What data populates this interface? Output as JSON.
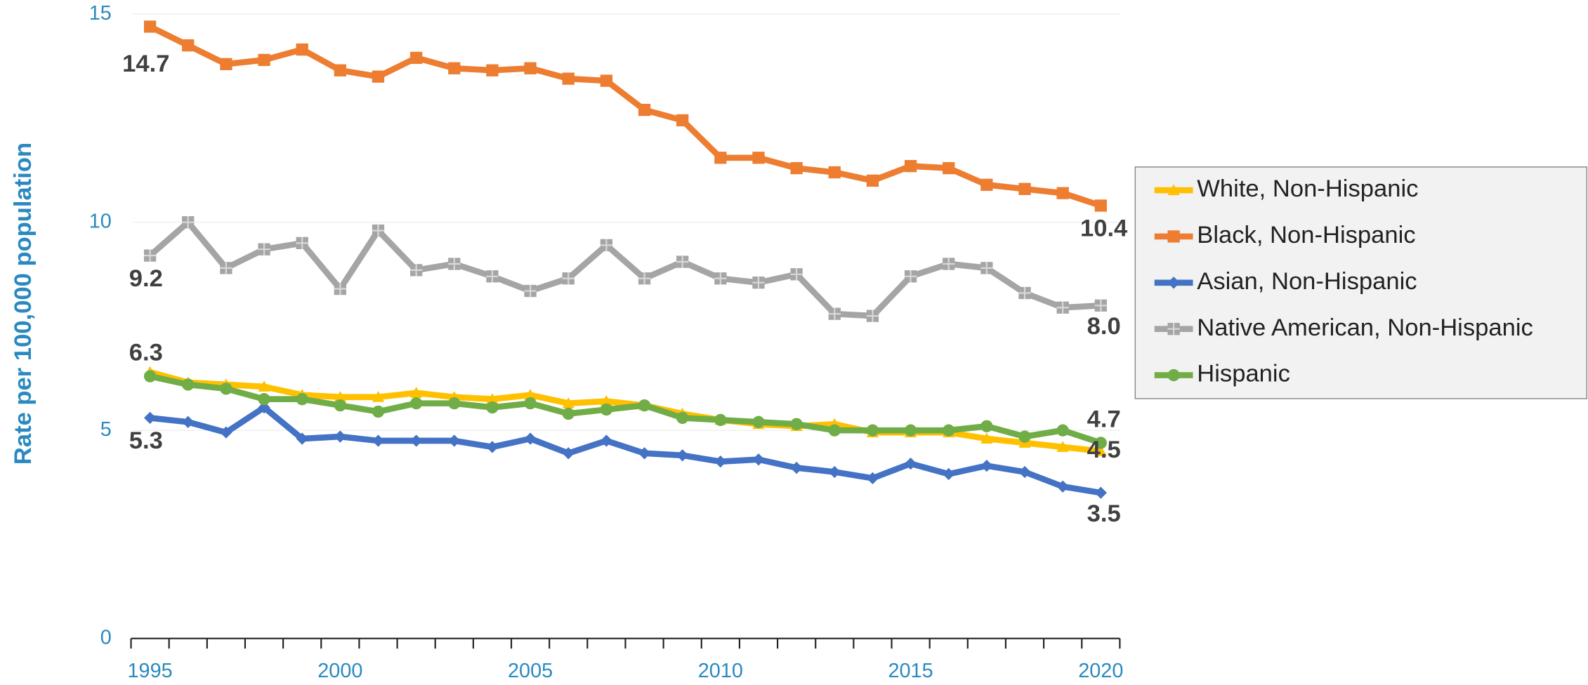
{
  "chart_data": {
    "type": "line",
    "y_label": "Rate per 100,000 population",
    "categories": [
      "1995",
      null,
      null,
      null,
      null,
      "2000",
      null,
      null,
      null,
      null,
      "2005",
      null,
      null,
      null,
      null,
      "2010",
      null,
      null,
      null,
      null,
      "2015",
      null,
      null,
      null,
      null,
      "2020"
    ],
    "ylim": [
      0,
      15
    ],
    "yticks": [
      0,
      5,
      10,
      15
    ],
    "grid": true,
    "legend": "right",
    "series": [
      {
        "name": "White, Non-Hispanic",
        "color": "#ffc000",
        "marker": "triangle",
        "values": [
          6.4,
          6.15,
          6.1,
          6.05,
          5.85,
          5.8,
          5.8,
          5.9,
          5.8,
          5.75,
          5.85,
          5.65,
          5.7,
          5.6,
          5.4,
          5.25,
          5.15,
          5.1,
          5.15,
          4.95,
          4.95,
          4.95,
          4.8,
          4.7,
          4.6,
          4.5
        ],
        "value_labels": [
          null,
          null,
          null,
          null,
          null,
          null,
          null,
          null,
          null,
          null,
          null,
          null,
          null,
          null,
          null,
          null,
          null,
          null,
          null,
          null,
          null,
          null,
          null,
          null,
          null,
          "4.5"
        ]
      },
      {
        "name": "Black, Non-Hispanic",
        "color": "#ed7d31",
        "marker": "square",
        "values": [
          14.7,
          14.25,
          13.8,
          13.9,
          14.15,
          13.65,
          13.5,
          13.95,
          13.7,
          13.65,
          13.7,
          13.45,
          13.4,
          12.7,
          12.45,
          11.55,
          11.55,
          11.3,
          11.2,
          11.0,
          11.35,
          11.3,
          10.9,
          10.8,
          10.7,
          10.4
        ],
        "value_labels": [
          "14.7",
          null,
          null,
          null,
          null,
          null,
          null,
          null,
          null,
          null,
          null,
          null,
          null,
          null,
          null,
          null,
          null,
          null,
          null,
          null,
          null,
          null,
          null,
          null,
          null,
          "10.4"
        ]
      },
      {
        "name": "Asian, Non-Hispanic",
        "color": "#4472c4",
        "marker": "diamond",
        "values": [
          5.3,
          5.2,
          4.95,
          5.55,
          4.8,
          4.85,
          4.75,
          4.75,
          4.75,
          4.6,
          4.8,
          4.45,
          4.75,
          4.45,
          4.4,
          4.25,
          4.3,
          4.1,
          4.0,
          3.85,
          4.2,
          3.95,
          4.15,
          4.0,
          3.65,
          3.5
        ],
        "value_labels": [
          "5.3",
          null,
          null,
          null,
          null,
          null,
          null,
          null,
          null,
          null,
          null,
          null,
          null,
          null,
          null,
          null,
          null,
          null,
          null,
          null,
          null,
          null,
          null,
          null,
          null,
          "3.5"
        ]
      },
      {
        "name": "Native American, Non-Hispanic",
        "color": "#a5a5a5",
        "marker": "cross-square",
        "values": [
          9.2,
          10.0,
          8.9,
          9.35,
          9.5,
          8.4,
          9.8,
          8.85,
          9.0,
          8.7,
          8.35,
          8.65,
          9.45,
          8.65,
          9.05,
          8.65,
          8.55,
          8.75,
          7.8,
          7.75,
          8.7,
          9.0,
          8.9,
          8.3,
          7.95,
          8.0
        ],
        "value_labels": [
          "9.2",
          null,
          null,
          null,
          null,
          null,
          null,
          null,
          null,
          null,
          null,
          null,
          null,
          null,
          null,
          null,
          null,
          null,
          null,
          null,
          null,
          null,
          null,
          null,
          null,
          "8.0"
        ]
      },
      {
        "name": "Hispanic",
        "color": "#70ad47",
        "marker": "circle",
        "values": [
          6.3,
          6.1,
          6.0,
          5.75,
          5.75,
          5.6,
          5.45,
          5.65,
          5.65,
          5.55,
          5.65,
          5.4,
          5.5,
          5.6,
          5.3,
          5.25,
          5.2,
          5.15,
          5.0,
          5.0,
          5.0,
          5.0,
          5.1,
          4.85,
          5.0,
          4.7
        ],
        "value_labels": [
          "6.3",
          null,
          null,
          null,
          null,
          null,
          null,
          null,
          null,
          null,
          null,
          null,
          null,
          null,
          null,
          null,
          null,
          null,
          null,
          null,
          null,
          null,
          null,
          null,
          null,
          "4.7"
        ]
      }
    ]
  }
}
